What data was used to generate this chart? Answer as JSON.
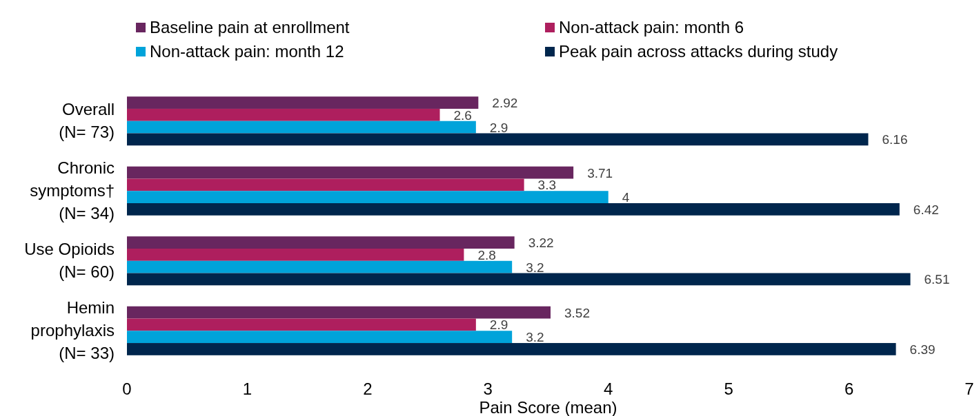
{
  "chart_data": {
    "type": "bar",
    "orientation": "horizontal",
    "xlabel": "Pain Score (mean)",
    "categories": [
      "Overall\n(N= 73)",
      "Chronic\nsymptoms†\n(N= 34)",
      "Use Opioids\n(N= 60)",
      "Hemin\nprophylaxis\n(N= 33)"
    ],
    "series": [
      {
        "name": "Baseline pain at enrollment",
        "color": "#68265f",
        "values": [
          2.92,
          3.71,
          3.22,
          3.52
        ]
      },
      {
        "name": "Non-attack pain: month 6",
        "color": "#ae1f5e",
        "values": [
          2.6,
          3.3,
          2.8,
          2.9
        ]
      },
      {
        "name": "Non-attack pain: month 12",
        "color": "#00a3da",
        "values": [
          2.9,
          4,
          3.2,
          3.2
        ]
      },
      {
        "name": "Peak pain across attacks during study",
        "color": "#00264d",
        "values": [
          6.16,
          6.42,
          6.51,
          6.39
        ]
      }
    ],
    "xlim": [
      0,
      7
    ],
    "xticks": [
      0,
      1,
      2,
      3,
      4,
      5,
      6,
      7
    ],
    "data_labels": true,
    "legend": "top",
    "grid": false
  }
}
